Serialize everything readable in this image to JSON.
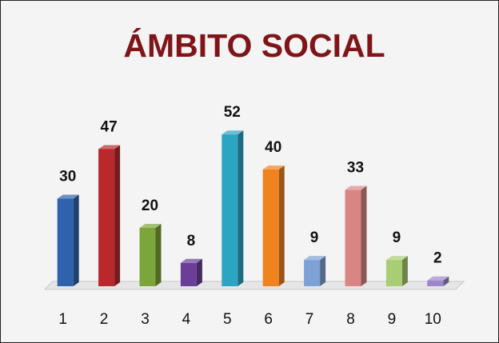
{
  "chart_data": {
    "type": "bar3d",
    "title": "ÁMBITO SOCIAL",
    "categories": [
      "1",
      "2",
      "3",
      "4",
      "5",
      "6",
      "7",
      "8",
      "9",
      "10"
    ],
    "values": [
      30,
      47,
      20,
      8,
      52,
      40,
      9,
      33,
      9,
      2
    ],
    "colors": [
      "#2f62ad",
      "#b9282c",
      "#7ca53a",
      "#6b3f98",
      "#2ba5c2",
      "#f0821f",
      "#7ea1d6",
      "#d98584",
      "#a9cd72",
      "#9c88c8"
    ],
    "ylim": [
      0,
      60
    ]
  }
}
